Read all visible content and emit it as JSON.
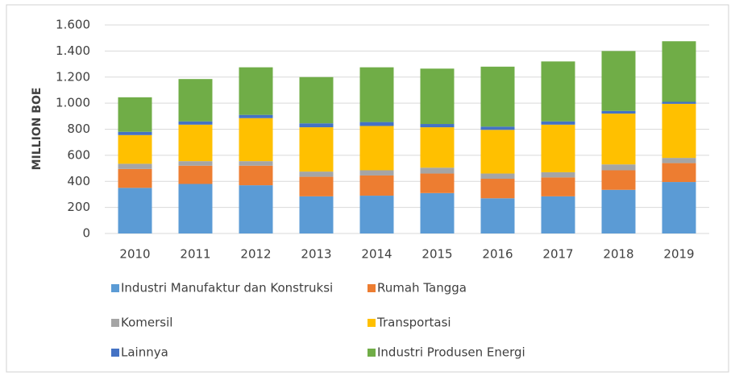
{
  "chart_data": {
    "type": "stacked-bar",
    "y_label": "MILLION BOE",
    "categories": [
      "2010",
      "2011",
      "2012",
      "2013",
      "2014",
      "2015",
      "2016",
      "2017",
      "2018",
      "2019"
    ],
    "series": [
      {
        "name": "Industri Manufaktur dan Konstruksi",
        "color": "#5b9bd5",
        "values": [
          350,
          380,
          370,
          285,
          290,
          310,
          270,
          285,
          335,
          395
        ]
      },
      {
        "name": "Rumah Tangga",
        "color": "#ed7d31",
        "values": [
          145,
          140,
          150,
          150,
          155,
          150,
          150,
          145,
          150,
          145
        ]
      },
      {
        "name": "Komersil",
        "color": "#a5a5a5",
        "values": [
          40,
          35,
          35,
          40,
          40,
          45,
          40,
          40,
          45,
          40
        ]
      },
      {
        "name": "Transportasi",
        "color": "#ffc000",
        "values": [
          220,
          280,
          330,
          340,
          340,
          310,
          335,
          365,
          390,
          415
        ]
      },
      {
        "name": "Lainnya",
        "color": "#4472c4",
        "values": [
          25,
          25,
          25,
          30,
          30,
          25,
          25,
          25,
          20,
          15
        ]
      },
      {
        "name": "Industri Produsen Energi",
        "color": "#70ad47",
        "values": [
          265,
          325,
          365,
          355,
          420,
          425,
          460,
          460,
          460,
          465
        ]
      }
    ],
    "ylim": [
      0,
      1600
    ],
    "yticks": [
      0,
      200,
      400,
      600,
      800,
      {
        "value": 1000,
        "label": "1.000"
      },
      {
        "value": 1200,
        "label": "1.200"
      },
      {
        "value": 1400,
        "label": "1.400"
      },
      {
        "value": 1600,
        "label": "1.600"
      }
    ],
    "grid": true
  }
}
